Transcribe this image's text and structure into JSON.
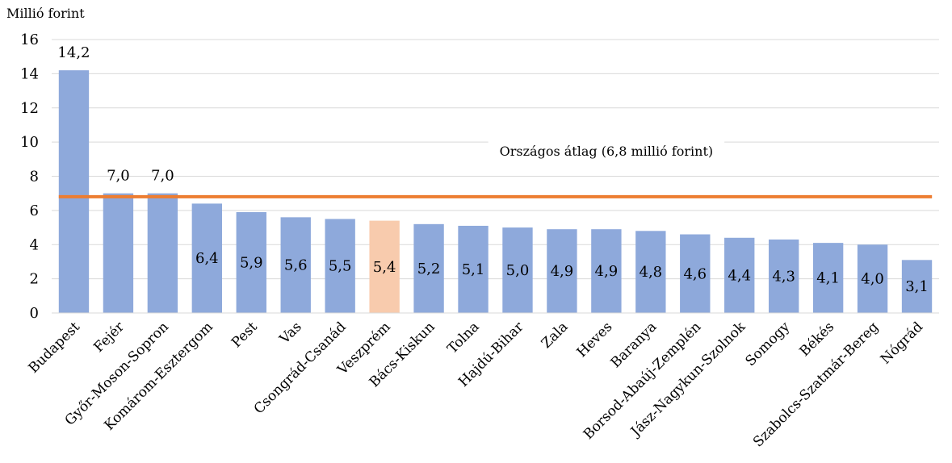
{
  "chart_data": {
    "type": "bar",
    "ylabel": "Millió forint",
    "ylim": [
      0,
      16
    ],
    "yticks": [
      "0",
      "2",
      "4",
      "6",
      "8",
      "10",
      "12",
      "14",
      "16"
    ],
    "grid": true,
    "categories": [
      "Budapest",
      "Fejér",
      "Győr-Moson-Sopron",
      "Komárom-Esztergom",
      "Pest",
      "Vas",
      "Csongrád-Csanád",
      "Veszprém",
      "Bács-Kiskun",
      "Tolna",
      "Hajdú-Bihar",
      "Zala",
      "Heves",
      "Baranya",
      "Borsod-Abaúj-Zemplén",
      "Jász-Nagykun-Szolnok",
      "Somogy",
      "Békés",
      "Szabolcs-Szatmár-Bereg",
      "Nógrád"
    ],
    "values": [
      14.2,
      7.0,
      7.0,
      6.4,
      5.9,
      5.6,
      5.5,
      5.4,
      5.2,
      5.1,
      5.0,
      4.9,
      4.9,
      4.8,
      4.6,
      4.4,
      4.3,
      4.1,
      4.0,
      3.1
    ],
    "value_labels": [
      "14,2",
      "7,0",
      "7,0",
      "6,4",
      "5,9",
      "5,6",
      "5,5",
      "5,4",
      "5,2",
      "5,1",
      "5,0",
      "4,9",
      "4,9",
      "4,8",
      "4,6",
      "4,4",
      "4,3",
      "4,1",
      "4,0",
      "3,1"
    ],
    "bar_color": "#8EA9DB",
    "highlight": {
      "category": "Veszprém",
      "color": "#F8CBAD"
    },
    "reference_line": {
      "value": 6.8,
      "label": "Országos átlag (6,8 millió forint)",
      "color": "#ED7D31"
    }
  }
}
